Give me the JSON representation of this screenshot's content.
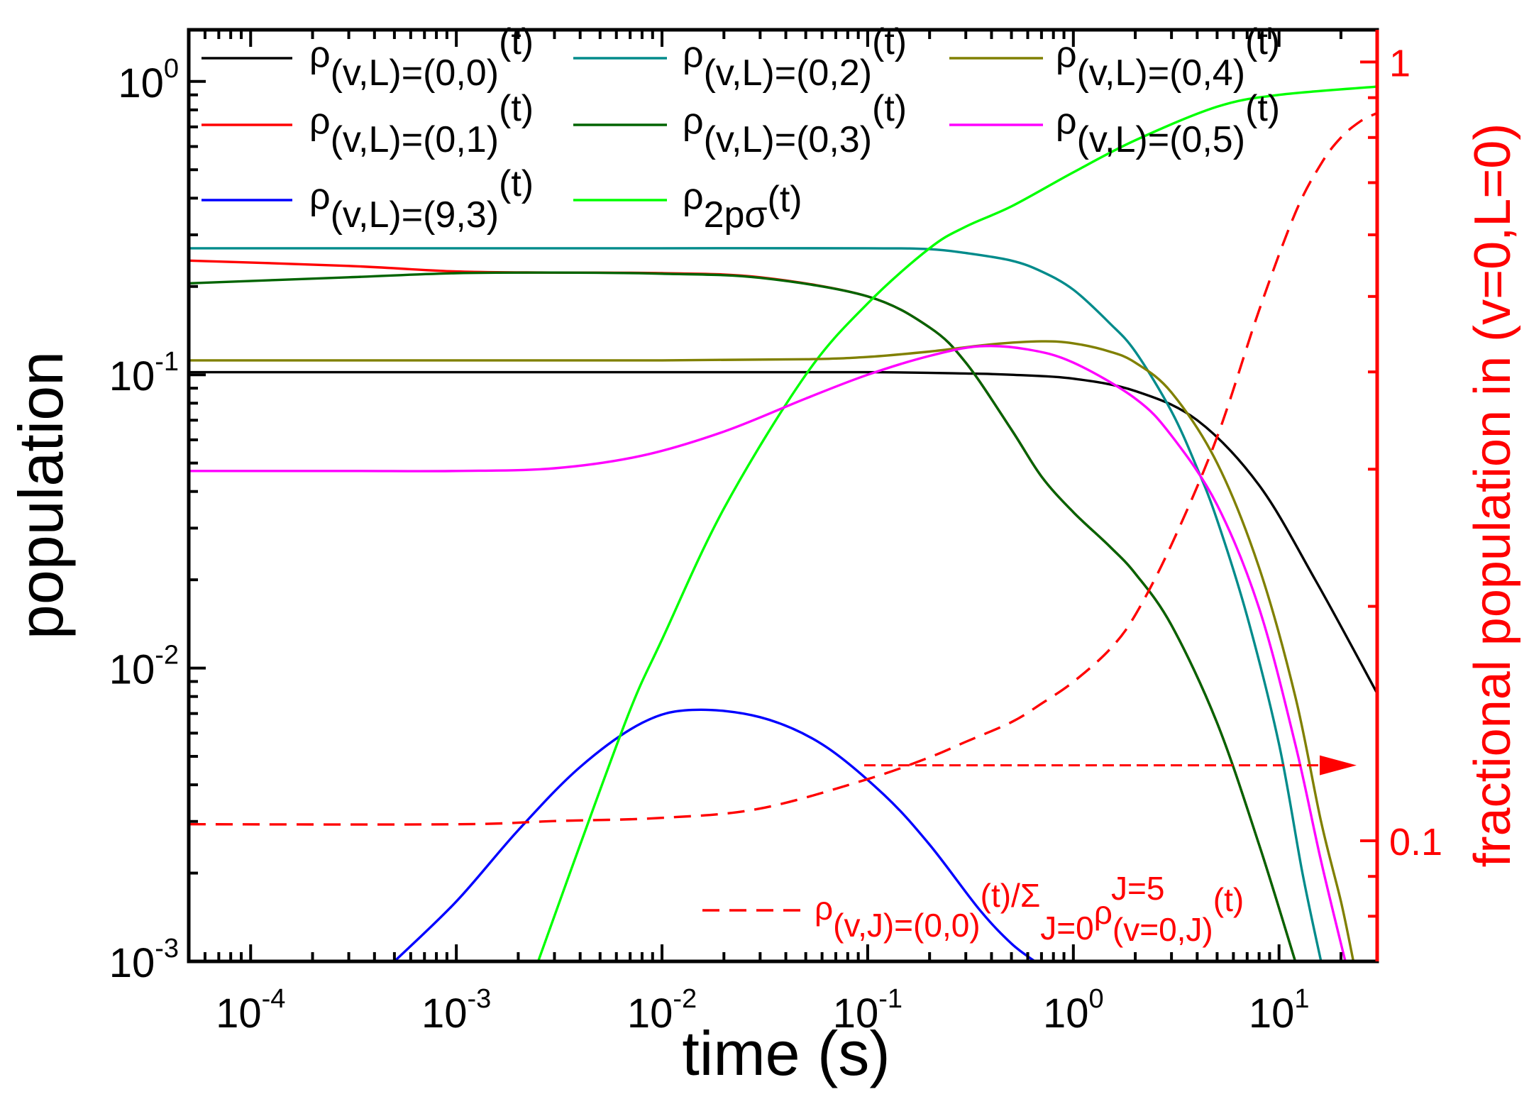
{
  "chart_data": {
    "type": "line",
    "title": "",
    "xlabel": "time (s)",
    "ylabel": "population",
    "y2label": "fractional population in (v=0,L=0)",
    "xscale": "log",
    "yscale": "log",
    "y2scale": "log",
    "xlim": [
      5e-05,
      30
    ],
    "ylim": [
      0.001,
      1.5
    ],
    "y2lim": [
      0.07,
      1.1
    ],
    "x_ticks": [
      {
        "base": "10",
        "exp": "-4",
        "value": 0.0001
      },
      {
        "base": "10",
        "exp": "-3",
        "value": 0.001
      },
      {
        "base": "10",
        "exp": "-2",
        "value": 0.01
      },
      {
        "base": "10",
        "exp": "-1",
        "value": 0.1
      },
      {
        "base": "10",
        "exp": "0",
        "value": 1
      },
      {
        "base": "10",
        "exp": "1",
        "value": 10
      }
    ],
    "y_ticks": [
      {
        "base": "10",
        "exp": "0",
        "value": 1
      },
      {
        "base": "10",
        "exp": "-1",
        "value": 0.1
      },
      {
        "base": "10",
        "exp": "-2",
        "value": 0.01
      },
      {
        "base": "10",
        "exp": "-3",
        "value": 0.001
      }
    ],
    "y2_ticks": [
      {
        "label": "1",
        "value": 1
      },
      {
        "label": "0.1",
        "value": 0.1
      }
    ],
    "series": [
      {
        "name": "ρ(v,L)=(0,0)(t)",
        "legend_main": "ρ",
        "legend_sub": "(v,L)=(0,0)",
        "legend_sup": "(t)",
        "color": "#000000",
        "axis": "left",
        "x": [
          5e-05,
          0.001,
          0.01,
          0.1,
          0.3,
          0.5,
          1,
          2,
          4,
          8,
          15,
          30
        ],
        "y": [
          0.102,
          0.102,
          0.102,
          0.102,
          0.101,
          0.1,
          0.097,
          0.088,
          0.07,
          0.042,
          0.02,
          0.0082
        ]
      },
      {
        "name": "ρ(v,L)=(0,1)(t)",
        "legend_main": "ρ",
        "legend_sub": "(v,L)=(0,1)",
        "legend_sup": "(t)",
        "color": "#ff0000",
        "axis": "left",
        "x": [
          5e-05,
          0.0003,
          0.001,
          0.003,
          0.01,
          0.03,
          0.1,
          0.2,
          0.3,
          0.5,
          0.7,
          1,
          1.5,
          2,
          3,
          5,
          8,
          12
        ],
        "y": [
          0.245,
          0.235,
          0.225,
          0.223,
          0.222,
          0.215,
          0.185,
          0.145,
          0.11,
          0.065,
          0.045,
          0.034,
          0.026,
          0.021,
          0.014,
          0.0065,
          0.0025,
          0.001
        ]
      },
      {
        "name": "ρ(v,L)=(9,3)(t)",
        "legend_main": "ρ",
        "legend_sub": "(v,L)=(9,3)",
        "legend_sup": "(t)",
        "color": "#0000ff",
        "axis": "left",
        "x": [
          0.0005,
          0.001,
          0.002,
          0.004,
          0.008,
          0.014,
          0.03,
          0.06,
          0.12,
          0.2,
          0.35,
          0.5,
          0.65
        ],
        "y": [
          0.001,
          0.0016,
          0.0028,
          0.0046,
          0.0065,
          0.0072,
          0.0068,
          0.0055,
          0.0037,
          0.0025,
          0.0015,
          0.00115,
          0.001
        ]
      },
      {
        "name": "ρ(v,L)=(0,2)(t)",
        "legend_main": "ρ",
        "legend_sub": "(v,L)=(0,2)",
        "legend_sup": "(t)",
        "color": "#008b8b",
        "axis": "left",
        "x": [
          5e-05,
          0.001,
          0.01,
          0.1,
          0.2,
          0.3,
          0.5,
          0.7,
          1,
          1.5,
          2,
          3,
          4,
          5,
          7,
          10,
          13,
          16
        ],
        "y": [
          0.27,
          0.27,
          0.27,
          0.27,
          0.268,
          0.26,
          0.245,
          0.225,
          0.195,
          0.15,
          0.12,
          0.075,
          0.048,
          0.032,
          0.015,
          0.0055,
          0.002,
          0.001
        ]
      },
      {
        "name": "ρ(v,L)=(0,3)(t)",
        "legend_main": "ρ",
        "legend_sub": "(v,L)=(0,3)",
        "legend_sup": "(t)",
        "color": "#006400",
        "axis": "left",
        "x": [
          5e-05,
          0.0003,
          0.001,
          0.003,
          0.01,
          0.03,
          0.1,
          0.2,
          0.3,
          0.5,
          0.7,
          1,
          1.5,
          2,
          3,
          5,
          8,
          12
        ],
        "y": [
          0.205,
          0.215,
          0.222,
          0.223,
          0.221,
          0.214,
          0.185,
          0.145,
          0.11,
          0.065,
          0.045,
          0.034,
          0.026,
          0.021,
          0.014,
          0.0065,
          0.0025,
          0.001
        ]
      },
      {
        "name": "ρ2pσ(t)",
        "legend_main": "ρ",
        "legend_sub": "2pσ",
        "legend_sup": "",
        "legend_tail": "(t)",
        "color": "#00ff00",
        "axis": "left",
        "x": [
          0.0025,
          0.004,
          0.007,
          0.01,
          0.02,
          0.05,
          0.1,
          0.2,
          0.3,
          0.5,
          1,
          2,
          5,
          10,
          30
        ],
        "y": [
          0.001,
          0.0025,
          0.0072,
          0.0125,
          0.035,
          0.1,
          0.175,
          0.27,
          0.32,
          0.375,
          0.49,
          0.63,
          0.82,
          0.9,
          0.96
        ]
      },
      {
        "name": "ρ(v,L)=(0,4)(t)",
        "legend_main": "ρ",
        "legend_sub": "(v,L)=(0,4)",
        "legend_sup": "(t)",
        "color": "#808000",
        "axis": "left",
        "x": [
          5e-05,
          0.001,
          0.01,
          0.05,
          0.1,
          0.2,
          0.4,
          0.7,
          1,
          1.5,
          2,
          3,
          5,
          8,
          12,
          16,
          20,
          23
        ],
        "y": [
          0.112,
          0.112,
          0.112,
          0.113,
          0.115,
          0.12,
          0.127,
          0.13,
          0.128,
          0.12,
          0.11,
          0.087,
          0.05,
          0.022,
          0.008,
          0.003,
          0.0016,
          0.001
        ]
      },
      {
        "name": "ρ(v,L)=(0,5)(t)",
        "legend_main": "ρ",
        "legend_sub": "(v,L)=(0,5)",
        "legend_sup": "(t)",
        "color": "#ff00ff",
        "axis": "left",
        "x": [
          5e-05,
          0.0003,
          0.001,
          0.003,
          0.008,
          0.02,
          0.05,
          0.1,
          0.2,
          0.35,
          0.6,
          1,
          2,
          3,
          5,
          8,
          12,
          16,
          21
        ],
        "y": [
          0.047,
          0.047,
          0.047,
          0.048,
          0.053,
          0.064,
          0.083,
          0.1,
          0.116,
          0.125,
          0.122,
          0.11,
          0.083,
          0.062,
          0.036,
          0.016,
          0.0055,
          0.0022,
          0.001
        ]
      },
      {
        "name": "ρ(v,J)=(0,0)(t)/ΣJ=0..5 ρ(v=0,J)(t)",
        "color": "#ff0000",
        "axis": "right",
        "dashed": true,
        "x": [
          5e-05,
          0.001,
          0.003,
          0.01,
          0.03,
          0.1,
          0.2,
          0.3,
          0.5,
          0.7,
          1,
          1.5,
          2,
          3,
          5,
          8,
          12,
          16,
          20,
          25,
          30
        ],
        "y": [
          0.105,
          0.105,
          0.106,
          0.107,
          0.11,
          0.12,
          0.128,
          0.134,
          0.142,
          0.15,
          0.16,
          0.176,
          0.195,
          0.24,
          0.33,
          0.48,
          0.64,
          0.74,
          0.8,
          0.84,
          0.86
        ]
      }
    ],
    "legend": {
      "position": "top"
    },
    "annotation_legend": {
      "part1_main": "ρ",
      "part1_sub": "(v,J)=(0,0)",
      "part1_sup": "(t)",
      "slash": "/",
      "sigma": "Σ",
      "sum_upper": "J=5",
      "sum_lower": "J=0",
      "part2_main": "ρ",
      "part2_sub": "(v=0,J)",
      "part2_sup": "(t)"
    },
    "arrow": {
      "points_to": "right axis",
      "at_value": 0.125
    }
  }
}
